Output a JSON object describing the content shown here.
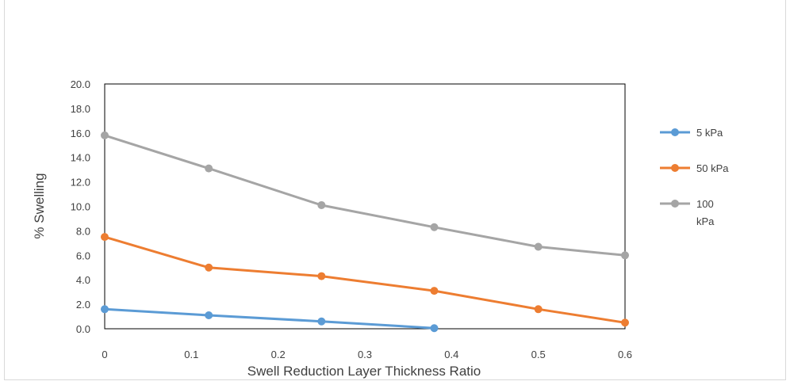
{
  "chart_data": {
    "type": "line",
    "title": "",
    "xlabel": "Swell Reduction  Layer Thickness Ratio",
    "ylabel": "% Swelling",
    "xlim": [
      0,
      0.6
    ],
    "ylim": [
      0,
      20
    ],
    "x_ticks": [
      "0",
      "0.1",
      "0.2",
      "0.3",
      "0.4",
      "0.5",
      "0.6"
    ],
    "y_ticks": [
      "0.0",
      "2.0",
      "4.0",
      "6.0",
      "8.0",
      "10.0",
      "12.0",
      "14.0",
      "16.0",
      "18.0",
      "20.0"
    ],
    "grid": false,
    "legend_position": "right",
    "series": [
      {
        "name": "5 kPa",
        "color": "#5b9bd5",
        "x": [
          0,
          0.12,
          0.25,
          0.38
        ],
        "y": [
          1.6,
          1.1,
          0.6,
          0.05
        ]
      },
      {
        "name": "50 kPa",
        "color": "#ed7d31",
        "x": [
          0,
          0.12,
          0.25,
          0.38,
          0.5,
          0.6
        ],
        "y": [
          7.5,
          5.0,
          4.3,
          3.1,
          1.6,
          0.5
        ]
      },
      {
        "name": "100 kPa",
        "color": "#a5a5a5",
        "x": [
          0,
          0.12,
          0.25,
          0.38,
          0.5,
          0.6
        ],
        "y": [
          15.8,
          13.1,
          10.1,
          8.3,
          6.7,
          6.0
        ]
      }
    ]
  }
}
